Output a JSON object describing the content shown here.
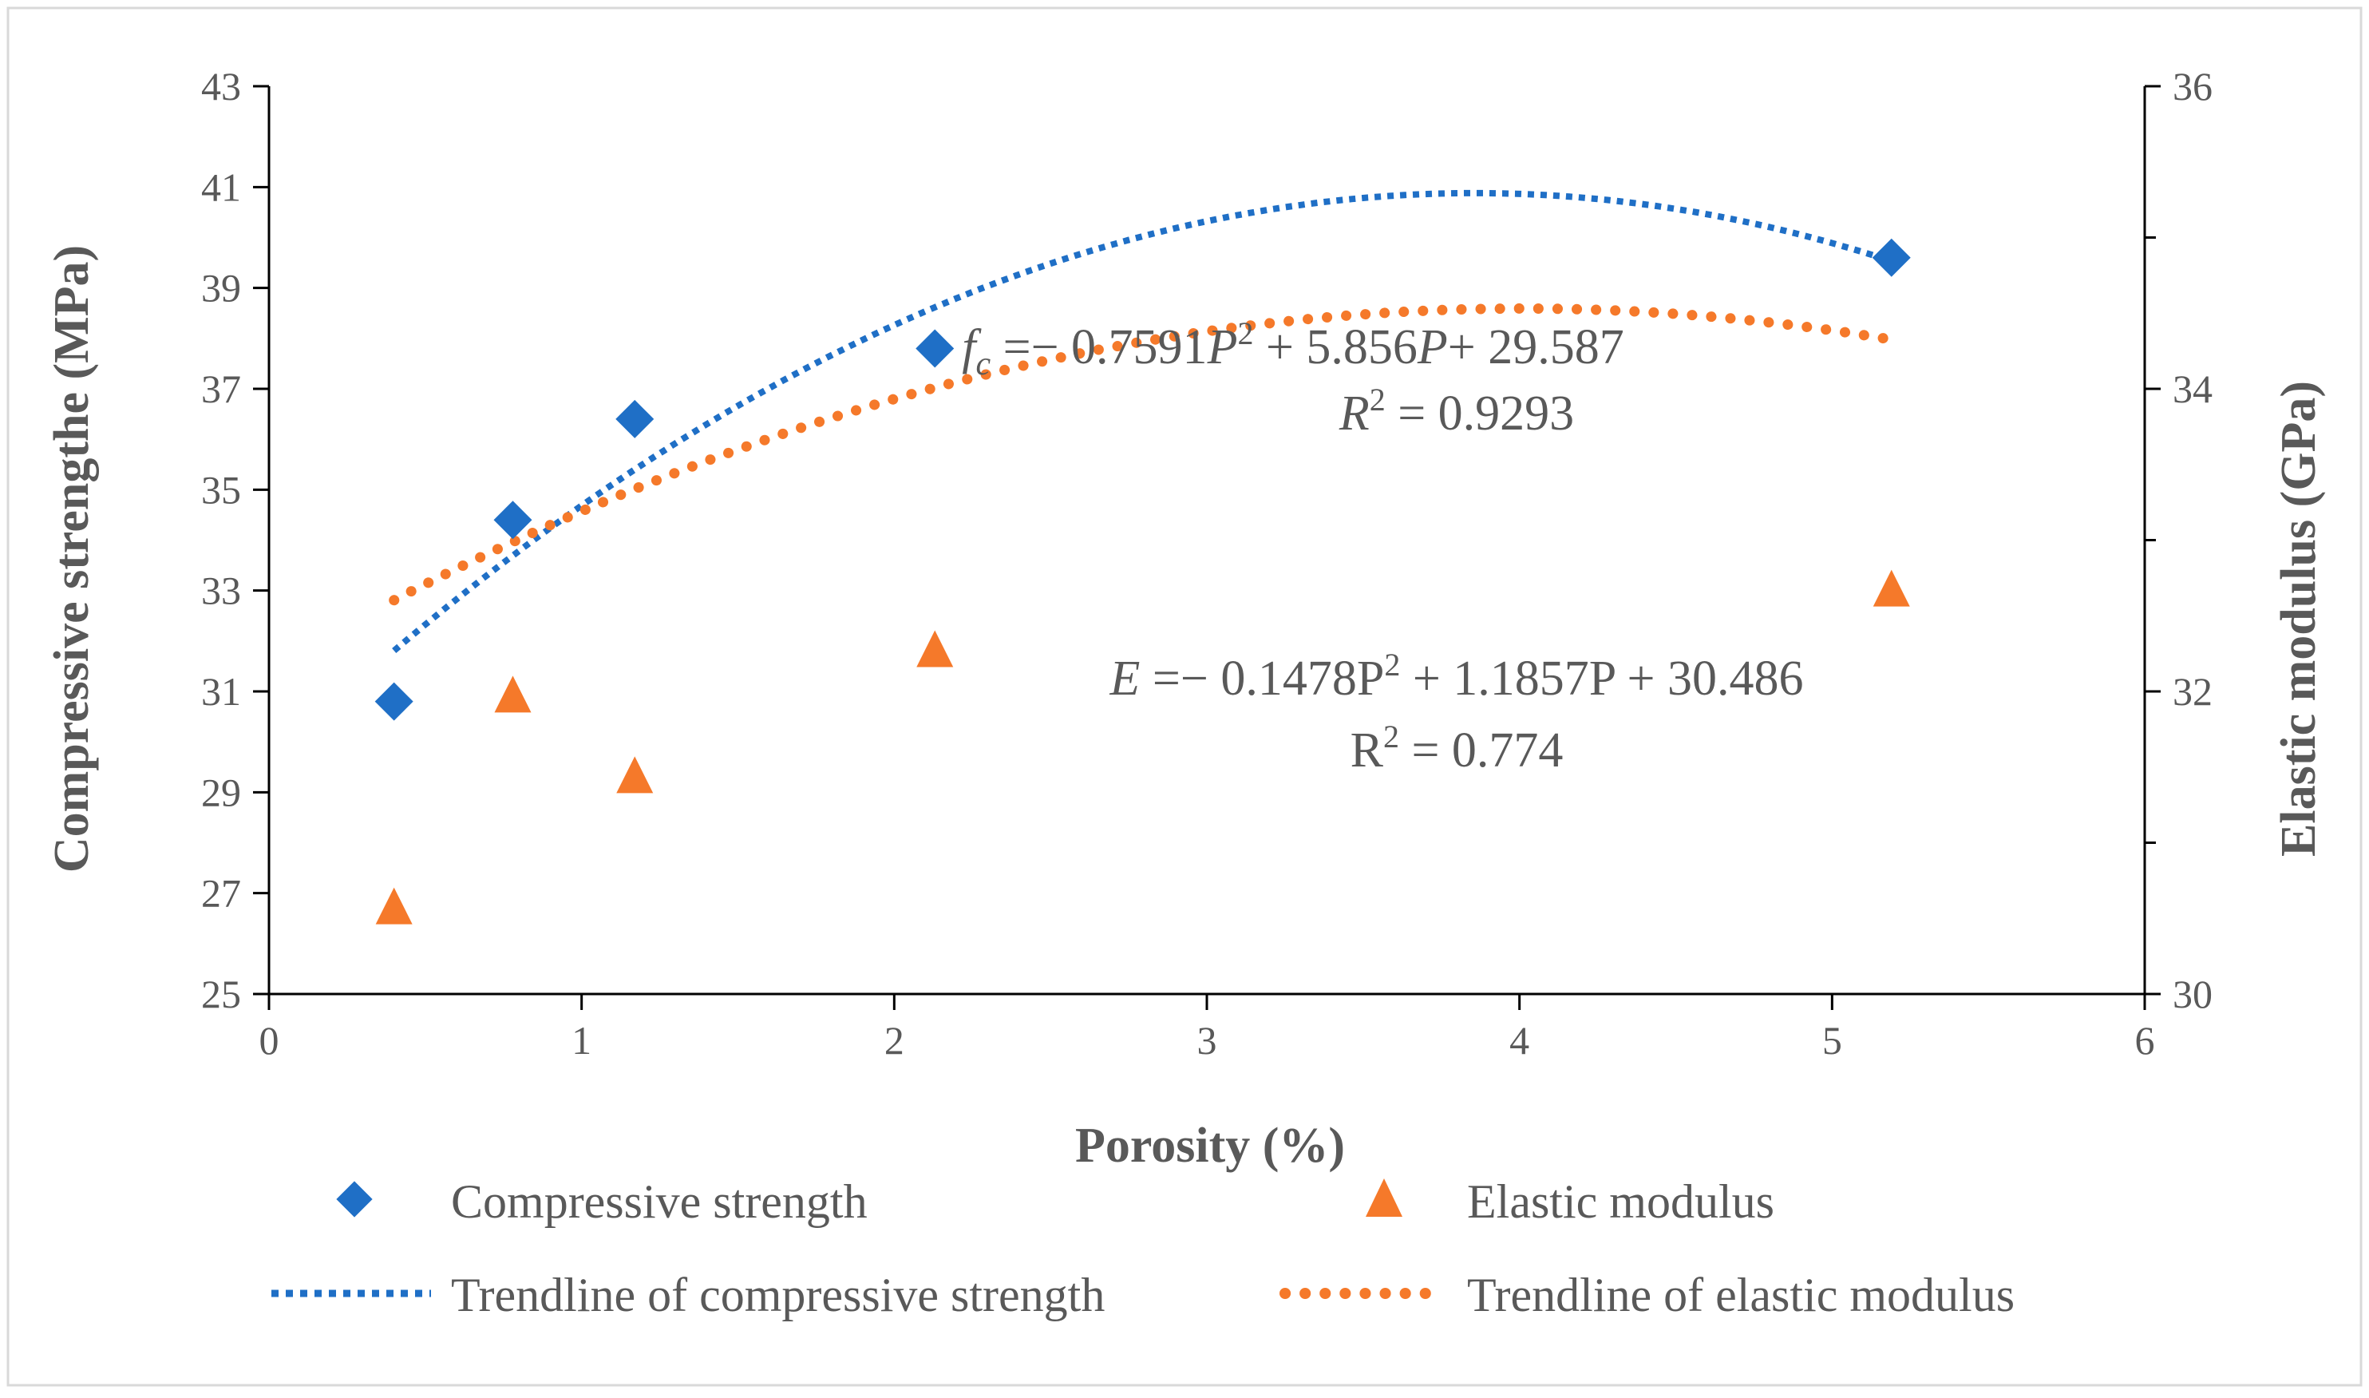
{
  "chart_data": {
    "type": "scatter",
    "x_axis": {
      "label": "Porosity (%)",
      "min": 0,
      "max": 6,
      "ticks": [
        "0",
        "1",
        "2",
        "3",
        "4",
        "5",
        "6"
      ]
    },
    "y_axis_left": {
      "label": "Compressive strengthe (MPa)",
      "min": 25,
      "max": 43,
      "ticks": [
        "25",
        "27",
        "29",
        "31",
        "33",
        "35",
        "37",
        "39",
        "41",
        "43"
      ]
    },
    "y_axis_right": {
      "label": "Elastic modulus (GPa)",
      "min": 30,
      "max": 36,
      "ticks": [
        "30",
        "32",
        "34",
        "36"
      ]
    },
    "series": [
      {
        "name": "Compressive strength",
        "axis": "left",
        "marker": "diamond",
        "color": "#1F6FC6",
        "points": [
          {
            "x": 0.4,
            "y": 30.8
          },
          {
            "x": 0.78,
            "y": 34.4
          },
          {
            "x": 1.17,
            "y": 36.4
          },
          {
            "x": 2.13,
            "y": 37.8
          },
          {
            "x": 5.19,
            "y": 39.6
          }
        ]
      },
      {
        "name": "Elastic modulus",
        "axis": "left",
        "marker": "triangle",
        "color": "#F5792A",
        "points": [
          {
            "x": 0.4,
            "y": 26.7
          },
          {
            "x": 0.78,
            "y": 30.9
          },
          {
            "x": 1.17,
            "y": 29.3
          },
          {
            "x": 2.13,
            "y": 31.8
          },
          {
            "x": 5.19,
            "y": 33.0
          }
        ]
      }
    ],
    "trendlines": [
      {
        "name": "Trendline of compressive strength",
        "color": "#1F6FC6",
        "coefficients": [
          -0.7591,
          5.856,
          29.587
        ],
        "x_range": [
          0.4,
          5.19
        ],
        "y_scale": 1.0,
        "y_offset": 0.0
      },
      {
        "name": "Trendline of elastic modulus",
        "color": "#F5792A",
        "coefficients": [
          -0.1478,
          1.1857,
          30.486
        ],
        "x_range": [
          0.4,
          5.19
        ],
        "y_scale": 3.0,
        "y_offset": -60.0
      }
    ],
    "annotations": {
      "fc_equation": {
        "f": "f",
        "sub": "c",
        "rest1": " =− 0.7591",
        "P1": "P",
        "sup1": "2",
        "rest2": " + 5.856",
        "P2": "P",
        "rest3": "+ 29.587"
      },
      "fc_r2": {
        "R": "R",
        "sup": "2",
        "rest": " = 0.9293"
      },
      "e_equation": {
        "E": "E",
        "rest1": " =− 0.1478P",
        "sup": "2",
        "rest2": " + 1.1857P + 30.486"
      },
      "e_r2": {
        "R": "R",
        "sup": "2",
        "rest": " = 0.774"
      }
    },
    "legend": {
      "position": "bottom",
      "entries": [
        "Compressive strength",
        "Elastic modulus",
        "Trendline of compressive strength",
        "Trendline of elastic modulus"
      ]
    }
  }
}
